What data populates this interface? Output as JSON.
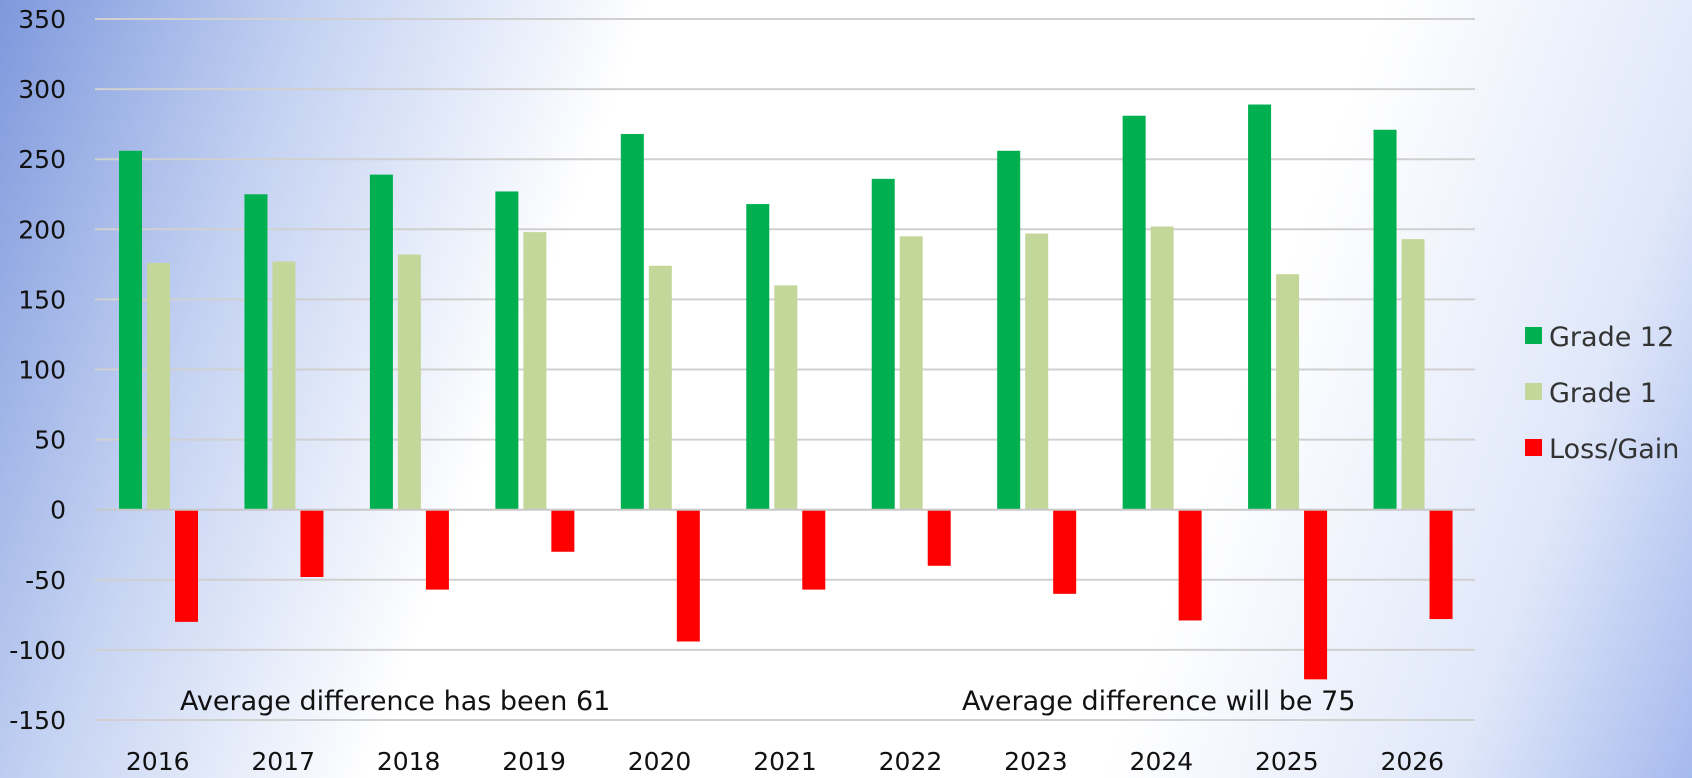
{
  "chart_data": {
    "type": "bar",
    "categories": [
      "2016",
      "2017",
      "2018",
      "2019",
      "2020",
      "2021",
      "2022",
      "2023",
      "2024",
      "2025",
      "2026"
    ],
    "series": [
      {
        "name": "Grade 12",
        "color": "#00b050",
        "values": [
          256,
          225,
          239,
          227,
          268,
          218,
          236,
          256,
          281,
          289,
          271
        ]
      },
      {
        "name": "Grade 1",
        "color": "#c4d79b",
        "values": [
          176,
          177,
          182,
          198,
          174,
          160,
          195,
          197,
          202,
          168,
          193
        ]
      },
      {
        "name": "Loss/Gain",
        "color": "#ff0000",
        "values": [
          -80,
          -48,
          -57,
          -30,
          -94,
          -57,
          -40,
          -60,
          -79,
          -121,
          -78
        ]
      }
    ],
    "ylim": [
      -150,
      350
    ],
    "yticks": [
      "350",
      "300",
      "250",
      "200",
      "150",
      "100",
      "50",
      "0",
      "-50",
      "-100",
      "-150"
    ],
    "grid": true,
    "legend_position": "right",
    "annotations": [
      {
        "text": "Average difference has been 61"
      },
      {
        "text": "Average difference will be 75"
      }
    ]
  }
}
